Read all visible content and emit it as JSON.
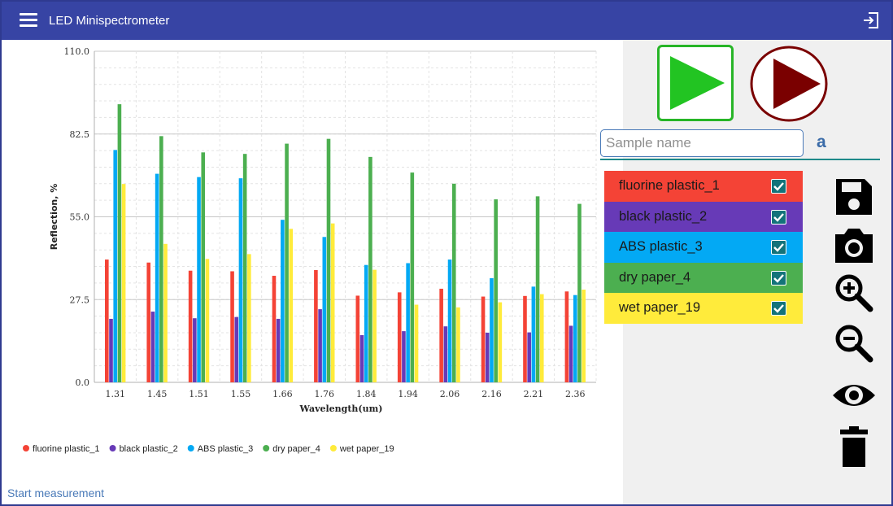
{
  "app": {
    "title": "LED Minispectrometer",
    "menu_icon": "hamburger-menu-icon",
    "exit_icon": "exit-icon"
  },
  "status_text": "Start measurement",
  "sample_input": {
    "placeholder": "Sample name",
    "value": "",
    "suffix": "a"
  },
  "samples": [
    {
      "label": "fluorine plastic_1",
      "checked": true,
      "color": "#f44336"
    },
    {
      "label": "black plastic_2",
      "checked": true,
      "color": "#673ab7"
    },
    {
      "label": "ABS plastic_3",
      "checked": true,
      "color": "#03a9f4"
    },
    {
      "label": "dry paper_4",
      "checked": true,
      "color": "#4caf50"
    },
    {
      "label": "wet paper_19",
      "checked": true,
      "color": "#ffeb3b"
    }
  ],
  "toolbar": {
    "start_icon": "play-icon",
    "stop_icon": "play-circle-icon",
    "save_icon": "save-icon",
    "camera_icon": "camera-icon",
    "zoom_in_icon": "zoom-in-icon",
    "zoom_out_icon": "zoom-out-icon",
    "view_icon": "eye-icon",
    "delete_icon": "delete-icon"
  },
  "colors": {
    "appbar": "#3744a4",
    "accent_green": "#22c422",
    "accent_dark_red": "#7a0000"
  },
  "chart_data": {
    "type": "bar",
    "xlabel": "Wavelength(um)",
    "ylabel": "Reflection, %",
    "ylim": [
      0,
      110
    ],
    "yticks": [
      "0.0",
      "27.5",
      "55.0",
      "82.5",
      "110.0"
    ],
    "grid": true,
    "legend_position": "bottom-left",
    "categories": [
      "1.31",
      "1.45",
      "1.51",
      "1.55",
      "1.66",
      "1.76",
      "1.84",
      "1.94",
      "2.06",
      "2.16",
      "2.21",
      "2.36"
    ],
    "series": [
      {
        "name": "fluorine plastic_1",
        "color": "#f44336",
        "values": [
          40.8,
          39.8,
          37.1,
          36.9,
          35.4,
          37.3,
          28.8,
          29.9,
          31.1,
          28.5,
          28.7,
          30.2
        ]
      },
      {
        "name": "black plastic_2",
        "color": "#673ab7",
        "values": [
          21.1,
          23.5,
          21.3,
          21.7,
          21.1,
          24.3,
          15.7,
          17.0,
          18.6,
          16.5,
          16.6,
          18.8
        ]
      },
      {
        "name": "ABS plastic_3",
        "color": "#03a9f4",
        "values": [
          77.2,
          69.3,
          68.2,
          67.8,
          54.0,
          48.3,
          39.0,
          39.6,
          40.8,
          34.6,
          31.8,
          29.0
        ]
      },
      {
        "name": "dry paper_4",
        "color": "#4caf50",
        "values": [
          92.4,
          81.8,
          76.4,
          75.9,
          79.3,
          80.9,
          74.9,
          69.7,
          66.0,
          60.8,
          61.8,
          59.3
        ]
      },
      {
        "name": "wet paper_19",
        "color": "#ffeb3b",
        "values": [
          65.9,
          46.0,
          41.0,
          42.6,
          51.0,
          52.8,
          37.4,
          25.8,
          24.9,
          26.6,
          29.3,
          30.8
        ]
      }
    ]
  }
}
